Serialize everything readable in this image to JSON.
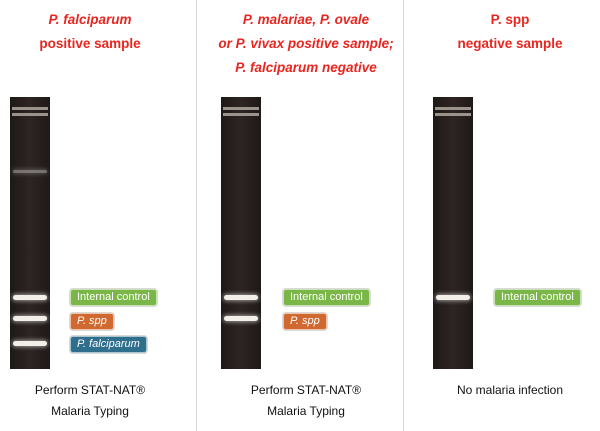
{
  "panels": [
    {
      "heading": [
        {
          "text": "P. falciparum",
          "italic": true
        },
        {
          "text": "positive sample",
          "italic": false
        }
      ],
      "labels": [
        {
          "text": "Internal control",
          "color": "#7ab648"
        },
        {
          "text": "P. spp",
          "color": "#d0692f"
        },
        {
          "text": "P. falciparum",
          "color": "#2f6e8c"
        }
      ],
      "footer": [
        "Perform STAT-NAT®",
        "Malaria Typing"
      ]
    },
    {
      "heading": [
        {
          "text": "P. malariae, P. ovale",
          "italic": true
        },
        {
          "text": "or P. vivax positive sample;",
          "italic": true
        },
        {
          "text": "P. falciparum negative",
          "italic": true
        }
      ],
      "labels": [
        {
          "text": "Internal control",
          "color": "#7ab648"
        },
        {
          "text": "P. spp",
          "color": "#d0692f"
        }
      ],
      "footer": [
        "Perform STAT-NAT®",
        "Malaria Typing"
      ]
    },
    {
      "heading": [
        {
          "text": "P. spp",
          "italic": false
        },
        {
          "text": "negative sample",
          "italic": false
        }
      ],
      "labels": [
        {
          "text": "Internal control",
          "color": "#7ab648"
        }
      ],
      "footer": [
        "No malaria infection"
      ]
    }
  ]
}
